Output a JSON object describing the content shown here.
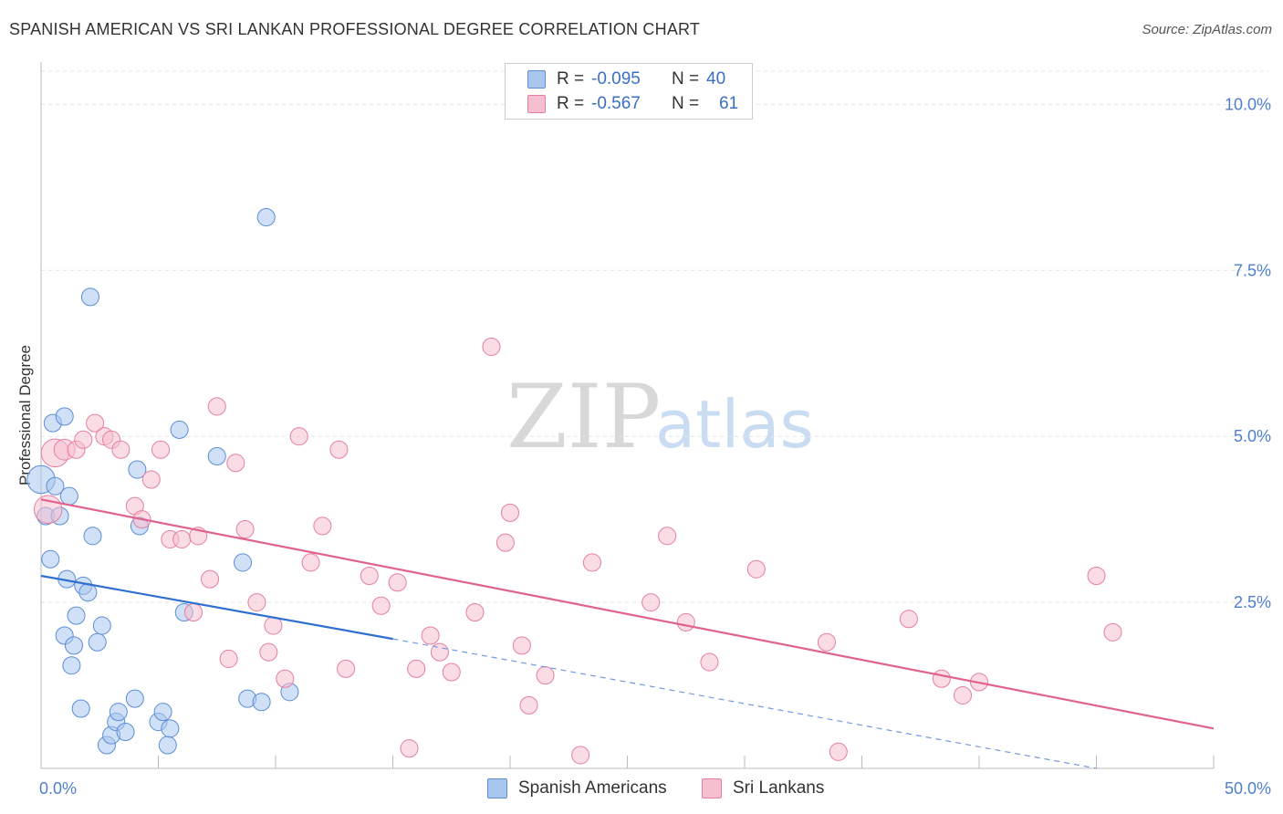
{
  "title": "SPANISH AMERICAN VS SRI LANKAN PROFESSIONAL DEGREE CORRELATION CHART",
  "source": "Source: ZipAtlas.com",
  "watermark": {
    "zip": "ZIP",
    "atlas": "atlas"
  },
  "legend": {
    "rows": [
      {
        "r_label": "R =",
        "r_value": "-0.095",
        "n_label": "N =",
        "n_value": "40",
        "color": "#a9c6ef",
        "stroke": "#5b8ed6"
      },
      {
        "r_label": "R =",
        "r_value": "-0.567",
        "n_label": "N =",
        "n_value": "61",
        "color": "#f6bfd0",
        "stroke": "#e57fa1"
      }
    ]
  },
  "bottom_legend": [
    {
      "label": "Spanish Americans",
      "color": "#a9c6ef",
      "stroke": "#5b8ed6"
    },
    {
      "label": "Sri Lankans",
      "color": "#f6bfd0",
      "stroke": "#e57fa1"
    }
  ],
  "chart_data": {
    "type": "scatter",
    "title": "SPANISH AMERICAN VS SRI LANKAN PROFESSIONAL DEGREE CORRELATION CHART",
    "xlabel": "",
    "ylabel": "Professional Degree",
    "xlim": [
      0,
      50
    ],
    "ylim": [
      0,
      10.5
    ],
    "x_tick_labels": [
      "0.0%",
      "50.0%"
    ],
    "y_ticks": [
      2.5,
      5.0,
      7.5,
      10.0
    ],
    "y_tick_labels": [
      "2.5%",
      "5.0%",
      "7.5%",
      "10.0%"
    ],
    "grid": true,
    "series": [
      {
        "name": "Spanish Americans",
        "color": "#a9c6ef",
        "stroke": "#5b8ed6",
        "trend": {
          "x0": 0,
          "y0": 2.9,
          "x1": 15,
          "y1": 1.95,
          "dash_to_x": 45,
          "dash_to_y": 0.0
        },
        "points": [
          [
            0.0,
            4.35,
            16
          ],
          [
            0.2,
            3.8,
            10
          ],
          [
            0.4,
            3.15,
            10
          ],
          [
            0.5,
            5.2,
            10
          ],
          [
            0.6,
            4.25,
            10
          ],
          [
            0.8,
            3.8,
            10
          ],
          [
            1.0,
            5.3,
            10
          ],
          [
            1.0,
            2.0,
            10
          ],
          [
            1.1,
            2.85,
            10
          ],
          [
            1.2,
            4.1,
            10
          ],
          [
            1.3,
            1.55,
            10
          ],
          [
            1.4,
            1.85,
            10
          ],
          [
            1.5,
            2.3,
            10
          ],
          [
            1.7,
            0.9,
            10
          ],
          [
            1.8,
            2.75,
            10
          ],
          [
            2.0,
            2.65,
            10
          ],
          [
            2.1,
            7.1,
            10
          ],
          [
            2.2,
            3.5,
            10
          ],
          [
            2.4,
            1.9,
            10
          ],
          [
            2.6,
            2.15,
            10
          ],
          [
            2.8,
            0.35,
            10
          ],
          [
            3.0,
            0.5,
            10
          ],
          [
            3.2,
            0.7,
            10
          ],
          [
            3.3,
            0.85,
            10
          ],
          [
            3.6,
            0.55,
            10
          ],
          [
            4.0,
            1.05,
            10
          ],
          [
            4.1,
            4.5,
            10
          ],
          [
            4.2,
            3.65,
            10
          ],
          [
            5.0,
            0.7,
            10
          ],
          [
            5.2,
            0.85,
            10
          ],
          [
            5.4,
            0.35,
            10
          ],
          [
            5.5,
            0.6,
            10
          ],
          [
            5.9,
            5.1,
            10
          ],
          [
            6.1,
            2.35,
            10
          ],
          [
            7.5,
            4.7,
            10
          ],
          [
            8.6,
            3.1,
            10
          ],
          [
            8.8,
            1.05,
            10
          ],
          [
            9.4,
            1.0,
            10
          ],
          [
            9.6,
            8.3,
            10
          ],
          [
            10.6,
            1.15,
            10
          ]
        ]
      },
      {
        "name": "Sri Lankans",
        "color": "#f6bfd0",
        "stroke": "#e57fa1",
        "trend": {
          "x0": 0,
          "y0": 4.05,
          "x1": 50,
          "y1": 0.6
        },
        "points": [
          [
            0.3,
            3.9,
            16
          ],
          [
            0.6,
            4.75,
            16
          ],
          [
            1.0,
            4.8,
            12
          ],
          [
            1.5,
            4.8,
            10
          ],
          [
            1.8,
            4.95,
            10
          ],
          [
            2.3,
            5.2,
            10
          ],
          [
            2.7,
            5.0,
            10
          ],
          [
            3.0,
            4.95,
            10
          ],
          [
            3.4,
            4.8,
            10
          ],
          [
            4.0,
            3.95,
            10
          ],
          [
            4.3,
            3.75,
            10
          ],
          [
            4.7,
            4.35,
            10
          ],
          [
            5.1,
            4.8,
            10
          ],
          [
            5.5,
            3.45,
            10
          ],
          [
            6.0,
            3.45,
            10
          ],
          [
            6.5,
            2.35,
            10
          ],
          [
            6.7,
            3.5,
            10
          ],
          [
            7.2,
            2.85,
            10
          ],
          [
            7.5,
            5.45,
            10
          ],
          [
            8.0,
            1.65,
            10
          ],
          [
            8.3,
            4.6,
            10
          ],
          [
            8.7,
            3.6,
            10
          ],
          [
            9.2,
            2.5,
            10
          ],
          [
            9.7,
            1.75,
            10
          ],
          [
            9.9,
            2.15,
            10
          ],
          [
            10.4,
            1.35,
            10
          ],
          [
            11.0,
            5.0,
            10
          ],
          [
            11.5,
            3.1,
            10
          ],
          [
            12.0,
            3.65,
            10
          ],
          [
            12.7,
            4.8,
            10
          ],
          [
            13.0,
            1.5,
            10
          ],
          [
            14.0,
            2.9,
            10
          ],
          [
            14.5,
            2.45,
            10
          ],
          [
            15.2,
            2.8,
            10
          ],
          [
            15.7,
            0.3,
            10
          ],
          [
            16.0,
            1.5,
            10
          ],
          [
            16.6,
            2.0,
            10
          ],
          [
            17.0,
            1.75,
            10
          ],
          [
            17.5,
            1.45,
            10
          ],
          [
            18.5,
            2.35,
            10
          ],
          [
            19.2,
            6.35,
            10
          ],
          [
            19.8,
            3.4,
            10
          ],
          [
            20.0,
            3.85,
            10
          ],
          [
            20.5,
            1.85,
            10
          ],
          [
            20.8,
            0.95,
            10
          ],
          [
            21.5,
            1.4,
            10
          ],
          [
            23.0,
            0.2,
            10
          ],
          [
            23.5,
            3.1,
            10
          ],
          [
            26.0,
            2.5,
            10
          ],
          [
            26.7,
            3.5,
            10
          ],
          [
            27.5,
            2.2,
            10
          ],
          [
            28.5,
            1.6,
            10
          ],
          [
            30.5,
            3.0,
            10
          ],
          [
            33.5,
            1.9,
            10
          ],
          [
            34.0,
            0.25,
            10
          ],
          [
            37.0,
            2.25,
            10
          ],
          [
            38.4,
            1.35,
            10
          ],
          [
            39.3,
            1.1,
            10
          ],
          [
            40.0,
            1.3,
            10
          ],
          [
            45.0,
            2.9,
            10
          ],
          [
            45.7,
            2.05,
            10
          ]
        ]
      }
    ]
  }
}
